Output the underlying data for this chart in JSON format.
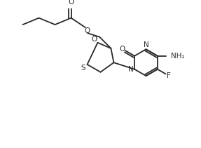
{
  "bg_color": "#ffffff",
  "line_color": "#2a2a2a",
  "line_width": 1.3,
  "font_size": 7.5,
  "figsize": [
    2.87,
    2.11
  ],
  "dpi": 100,
  "xlim": [
    0,
    10
  ],
  "ylim": [
    0,
    7.35
  ]
}
